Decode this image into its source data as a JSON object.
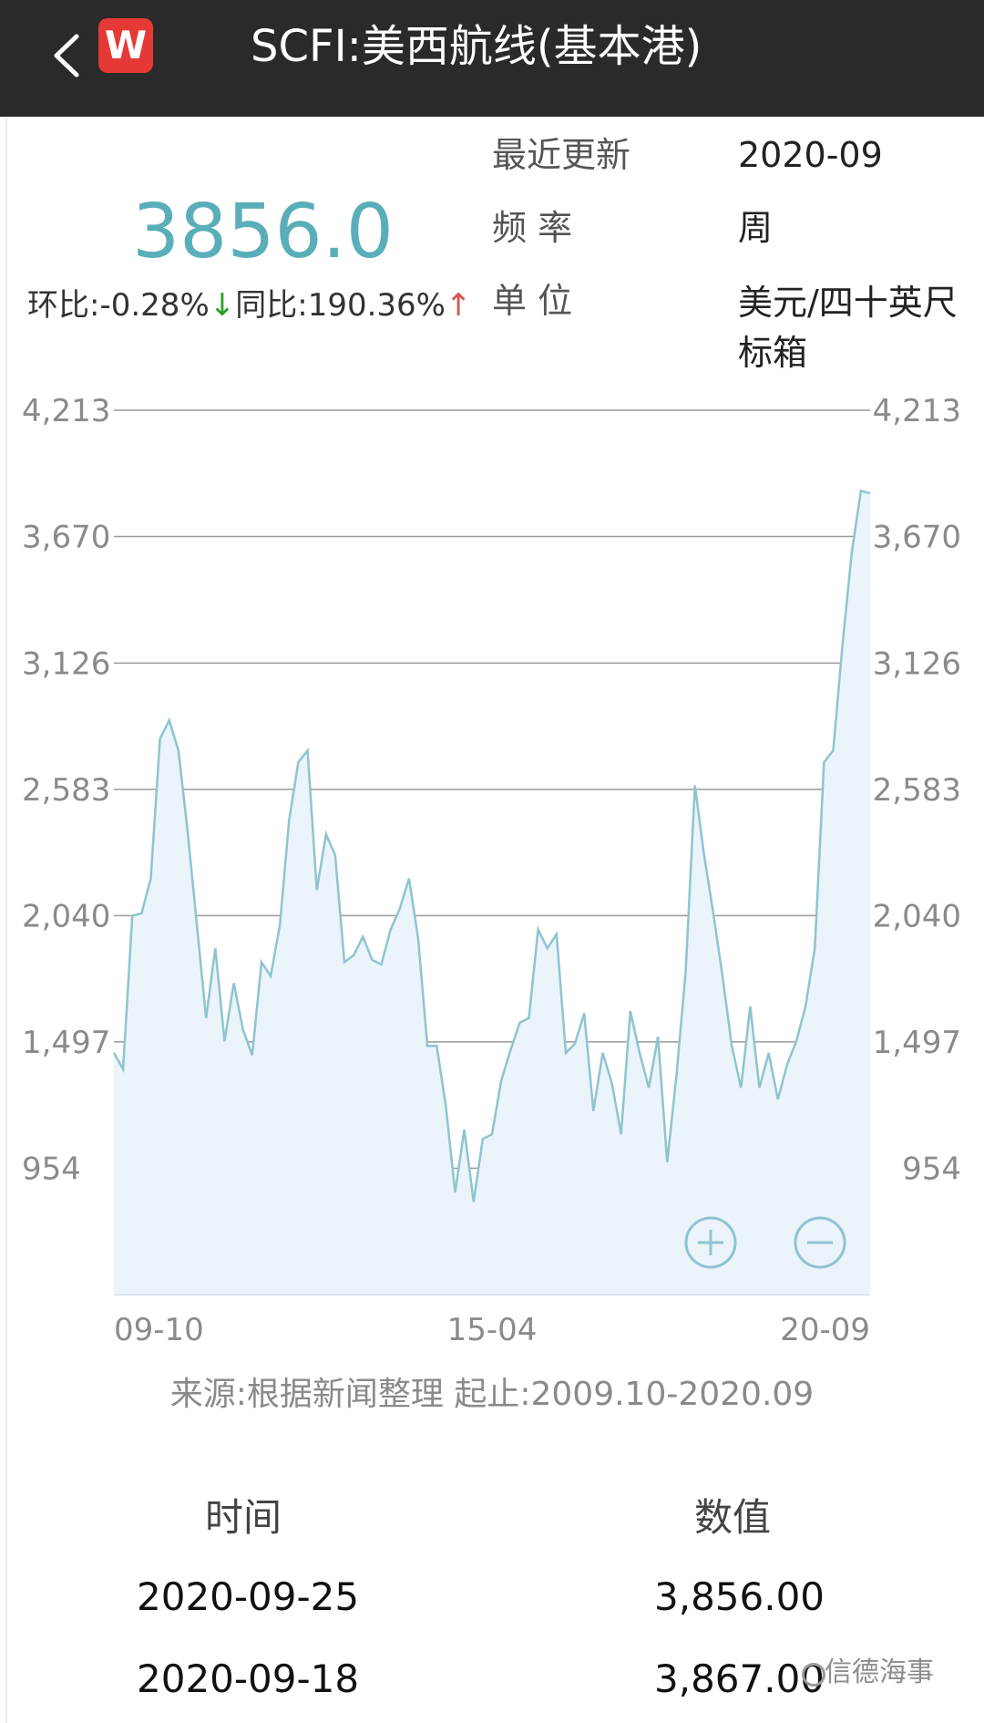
{
  "header": {
    "back_icon": "chevron-left-icon",
    "logo_text": "W",
    "title": "SCFI:美西航线(基本港)"
  },
  "summary": {
    "value": "3856.0",
    "mom_label": "环比:",
    "mom_value": "-0.28%",
    "mom_direction": "down",
    "yoy_label": "同比:",
    "yoy_value": "190.36%",
    "yoy_direction": "up"
  },
  "meta": {
    "updated_label": "最近更新",
    "updated_value": "2020-09",
    "frequency_label": "频 率",
    "frequency_value": "周",
    "unit_label": "单 位",
    "unit_value": "美元/四十英尺标箱"
  },
  "chart_data": {
    "type": "area",
    "title": "",
    "xlabel": "",
    "ylabel": "",
    "x_ticks": [
      "09-10",
      "15-04",
      "20-09"
    ],
    "y_ticks": [
      "4,213",
      "3,670",
      "3,126",
      "2,583",
      "2,040",
      "1,497",
      "954"
    ],
    "ylim": [
      411,
      4213
    ],
    "grid": true,
    "line_color": "#8fc4cf",
    "fill_color": "#eaf4fa",
    "series": [
      {
        "values": [
          1450,
          1380,
          2040,
          2050,
          2200,
          2800,
          2880,
          2750,
          2400,
          2000,
          1600,
          1900,
          1500,
          1750,
          1550,
          1440,
          1840,
          1780,
          2000,
          2450,
          2700,
          2750,
          2150,
          2390,
          2300,
          1840,
          1870,
          1950,
          1850,
          1830,
          1980,
          2070,
          2200,
          1940,
          1480,
          1480,
          1220,
          850,
          1120,
          810,
          1080,
          1100,
          1330,
          1460,
          1580,
          1600,
          1980,
          1900,
          1960,
          1450,
          1490,
          1620,
          1200,
          1450,
          1320,
          1100,
          1630,
          1450,
          1300,
          1520,
          980,
          1350,
          1800,
          2600,
          2300,
          2050,
          1780,
          1480,
          1300,
          1650,
          1300,
          1450,
          1250,
          1400,
          1500,
          1650,
          1900,
          2700,
          2750,
          3200,
          3600,
          3867,
          3856
        ]
      }
    ],
    "zoom_in_icon": "zoom-in-icon",
    "zoom_out_icon": "zoom-out-icon"
  },
  "source": {
    "text": "来源:根据新闻整理 起止:2009.10-2020.09"
  },
  "table": {
    "headers": [
      "时间",
      "数值"
    ],
    "rows": [
      {
        "date": "2020-09-25",
        "value": "3,856.00"
      },
      {
        "date": "2020-09-18",
        "value": "3,867.00"
      }
    ]
  },
  "watermark": {
    "text": "信德海事"
  }
}
